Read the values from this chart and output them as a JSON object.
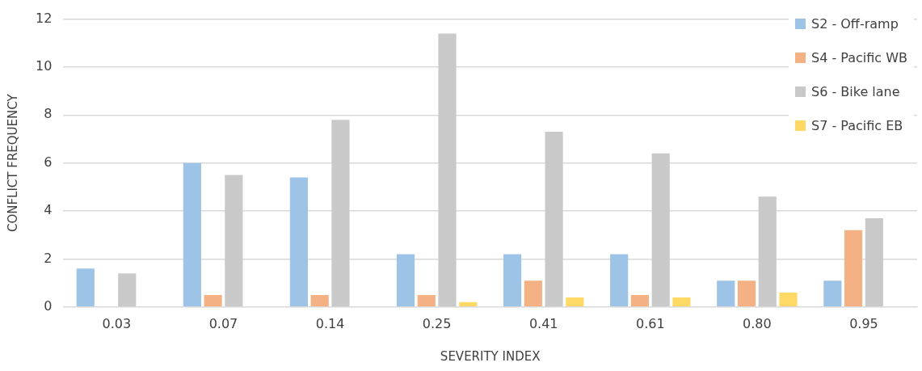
{
  "chart_data": {
    "type": "bar",
    "xlabel": "SEVERITY INDEX",
    "ylabel": "CONFLICT FREQUENCY",
    "categories": [
      "0.03",
      "0.07",
      "0.14",
      "0.25",
      "0.41",
      "0.61",
      "0.80",
      "0.95"
    ],
    "series": [
      {
        "name": "S2 - Off-ramp",
        "color": "#9dc3e6",
        "values": [
          1.6,
          6.0,
          5.4,
          2.2,
          2.2,
          2.2,
          1.1,
          1.1
        ]
      },
      {
        "name": "S4 - Pacific WB",
        "color": "#f4b183",
        "values": [
          0,
          0.5,
          0.5,
          0.5,
          1.1,
          0.5,
          1.1,
          3.2
        ]
      },
      {
        "name": "S6 - Bike lane",
        "color": "#c9c9c9",
        "values": [
          1.4,
          5.5,
          7.8,
          11.4,
          7.3,
          6.4,
          4.6,
          3.7
        ]
      },
      {
        "name": "S7 - Pacific EB",
        "color": "#ffd966",
        "values": [
          0,
          0,
          0,
          0.2,
          0.4,
          0.4,
          0.6,
          0
        ]
      }
    ],
    "ylim": [
      0,
      12
    ],
    "yticks": [
      0,
      2,
      4,
      6,
      8,
      10,
      12
    ],
    "grid": "y",
    "legend": "top right"
  }
}
